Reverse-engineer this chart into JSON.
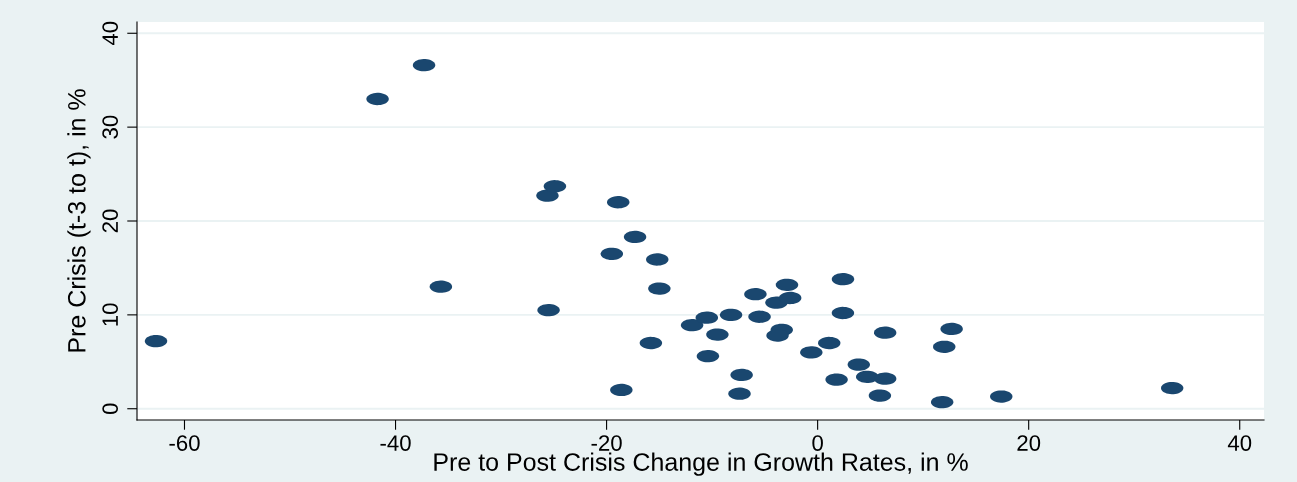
{
  "chart_data": {
    "type": "scatter",
    "xlabel": "Pre to Post Crisis Change in Growth Rates, in %",
    "ylabel": "Pre Crisis (t-3 to t), in %",
    "xlim": [
      -64.5,
      42.3
    ],
    "ylim": [
      -1.2,
      41.2
    ],
    "xticks": [
      -60,
      -40,
      -20,
      0,
      20,
      40
    ],
    "yticks": [
      0,
      10,
      20,
      30,
      40
    ],
    "grid": "y",
    "marker": "circle",
    "series": [
      {
        "color": "#1a476f",
        "x": [
          -62.7,
          -41.7,
          -37.3,
          -35.7,
          -25.6,
          -24.9,
          -25.5,
          -18.9,
          -17.3,
          -19.5,
          -15.2,
          -15.0,
          -15.8,
          -18.6,
          -11.9,
          -10.5,
          -9.5,
          -10.4,
          -8.2,
          -7.2,
          -7.4,
          -5.9,
          -5.5,
          -3.9,
          -2.9,
          -2.6,
          -3.4,
          -3.8,
          -0.6,
          1.1,
          1.8,
          2.4,
          2.4,
          3.9,
          4.7,
          5.9,
          6.4,
          6.4,
          11.8,
          12.0,
          12.7,
          17.4,
          33.6
        ],
        "values": [
          7.2,
          33.0,
          36.6,
          13.0,
          22.7,
          23.7,
          10.5,
          22.0,
          18.3,
          16.5,
          15.9,
          12.8,
          7.0,
          2.0,
          8.9,
          9.7,
          7.9,
          5.6,
          10.0,
          3.6,
          1.6,
          12.2,
          9.8,
          11.3,
          13.2,
          11.8,
          8.4,
          7.8,
          6.0,
          7.0,
          3.1,
          10.2,
          13.8,
          4.7,
          3.4,
          1.4,
          3.2,
          8.1,
          0.7,
          6.6,
          8.5,
          1.3,
          2.2
        ]
      }
    ]
  }
}
